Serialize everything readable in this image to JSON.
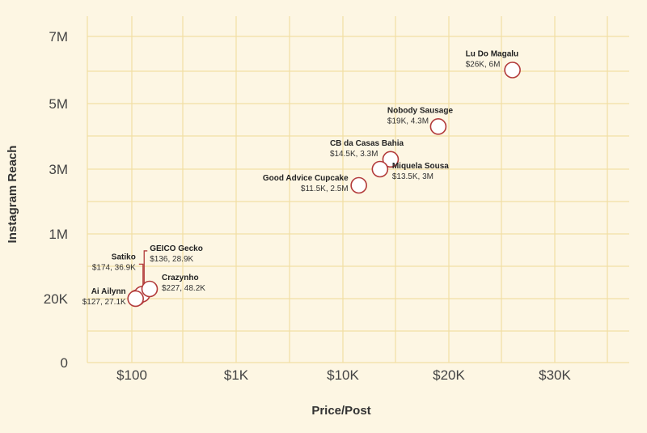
{
  "chart_data": {
    "type": "scatter",
    "title": "",
    "xlabel": "Price/Post",
    "ylabel": "Instagram Reach",
    "grid": true,
    "x_ticks": [
      "$100",
      "$1K",
      "$10K",
      "$20K",
      "$30K"
    ],
    "y_ticks": [
      "0",
      "20K",
      "1M",
      "3M",
      "5M",
      "7M"
    ],
    "colors": {
      "background": "#fdf6e3",
      "grid": "#f1dfa4",
      "marker": "#b23a3a",
      "marker_fill": "#ffffff",
      "leader": "#b23a3a"
    },
    "points": [
      {
        "name": "Lu Do Magalu",
        "value_label": "$26K, 6M",
        "price": 26000,
        "reach": 6000000,
        "label_side": "left-above"
      },
      {
        "name": "Nobody Sausage",
        "value_label": "$19K, 4.3M",
        "price": 19000,
        "reach": 4300000,
        "label_side": "left-above"
      },
      {
        "name": "CB da Casas Bahia",
        "value_label": "$14.5K, 3.3M",
        "price": 14500,
        "reach": 3300000,
        "label_side": "left-above"
      },
      {
        "name": "Miquela Sousa",
        "value_label": "$13.5K, 3M",
        "price": 13500,
        "reach": 3000000,
        "label_side": "right"
      },
      {
        "name": "Good Advice Cupcake",
        "value_label": "$11.5K, 2.5M",
        "price": 11500,
        "reach": 2500000,
        "label_side": "left"
      },
      {
        "name": "GEICO Gecko",
        "value_label": "$136, 28.9K",
        "price": 136,
        "reach": 28900,
        "label_side": "leader-top"
      },
      {
        "name": "Satiko",
        "value_label": "$174, 36.9K",
        "price": 174,
        "reach": 36900,
        "label_side": "leader-left"
      },
      {
        "name": "Crazynho",
        "value_label": "$227, 48.2K",
        "price": 227,
        "reach": 48200,
        "label_side": "right"
      },
      {
        "name": "Ai Ailynn",
        "value_label": "$127, 27.1K",
        "price": 127,
        "reach": 27100,
        "label_side": "left"
      }
    ]
  }
}
